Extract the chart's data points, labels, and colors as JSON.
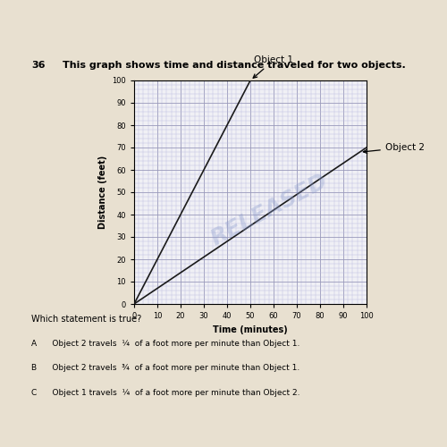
{
  "problem_num": "36",
  "title": "This graph shows time and distance traveled for two objects.",
  "xlabel": "Time (minutes)",
  "ylabel": "Distance (feet)",
  "xlim": [
    0,
    100
  ],
  "ylim": [
    0,
    100
  ],
  "xticks": [
    0,
    10,
    20,
    30,
    40,
    50,
    60,
    70,
    80,
    90,
    100
  ],
  "yticks": [
    0,
    10,
    20,
    30,
    40,
    50,
    60,
    70,
    80,
    90,
    100
  ],
  "object1": {
    "x": [
      0,
      50
    ],
    "y": [
      0,
      100
    ],
    "label": "Object 1",
    "color": "#1a1a1a"
  },
  "object2": {
    "x": [
      0,
      100
    ],
    "y": [
      0,
      70
    ],
    "label": "Object 2",
    "color": "#1a1a1a"
  },
  "watermark": "RELEASED",
  "watermark_color": "#8899cc",
  "watermark_alpha": 0.35,
  "grid_major_color": "#9999bb",
  "grid_minor_color": "#bbbbdd",
  "plot_bg": "#f0f0f5",
  "page_bg": "#e8e0d0",
  "header_bg": "#1a1510",
  "question": "Which statement is true?",
  "answer_A": "A      Object 2 travels  ¼  of a foot more per minute than Object 1.",
  "answer_B": "B      Object 2 travels  ¾  of a foot more per minute than Object 1.",
  "answer_C": "C      Object 1 travels  ¼  of a foot more per minute than Object 2."
}
